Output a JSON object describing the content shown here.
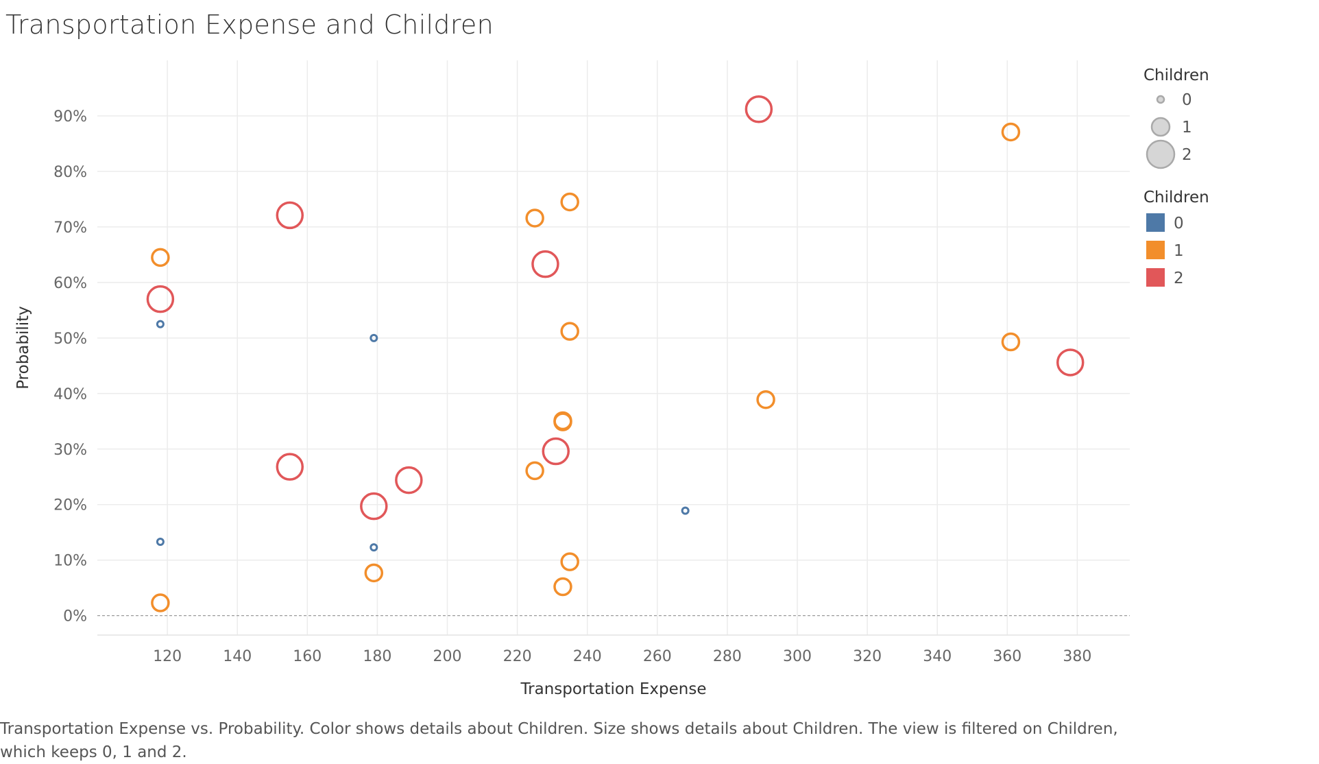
{
  "chart_data": {
    "type": "scatter",
    "title": "Transportation Expense and Children",
    "xlabel": "Transportation Expense",
    "ylabel": "Probability",
    "xlim": [
      100,
      395
    ],
    "ylim": [
      -0.035,
      1.0
    ],
    "x_ticks": [
      120,
      140,
      160,
      180,
      200,
      220,
      240,
      260,
      280,
      300,
      320,
      340,
      360,
      380
    ],
    "y_ticks": [
      0,
      0.1,
      0.2,
      0.3,
      0.4,
      0.5,
      0.6,
      0.7,
      0.8,
      0.9
    ],
    "y_tick_labels": [
      "0%",
      "10%",
      "20%",
      "30%",
      "40%",
      "50%",
      "60%",
      "70%",
      "80%",
      "90%"
    ],
    "grid": true,
    "marker": "hollow-circle",
    "color_by": "Children",
    "size_by": "Children",
    "series": [
      {
        "name": "0",
        "color": "#4e79a7",
        "points": [
          {
            "x": 118,
            "y": 0.525
          },
          {
            "x": 118,
            "y": 0.133
          },
          {
            "x": 179,
            "y": 0.5
          },
          {
            "x": 179,
            "y": 0.123
          },
          {
            "x": 268,
            "y": 0.189
          }
        ]
      },
      {
        "name": "1",
        "color": "#f28e2b",
        "points": [
          {
            "x": 118,
            "y": 0.645
          },
          {
            "x": 118,
            "y": 0.023
          },
          {
            "x": 179,
            "y": 0.077
          },
          {
            "x": 225,
            "y": 0.716
          },
          {
            "x": 225,
            "y": 0.261
          },
          {
            "x": 233,
            "y": 0.351
          },
          {
            "x": 233,
            "y": 0.349
          },
          {
            "x": 233,
            "y": 0.052
          },
          {
            "x": 235,
            "y": 0.745
          },
          {
            "x": 235,
            "y": 0.512
          },
          {
            "x": 235,
            "y": 0.097
          },
          {
            "x": 291,
            "y": 0.389
          },
          {
            "x": 361,
            "y": 0.871
          },
          {
            "x": 361,
            "y": 0.493
          }
        ]
      },
      {
        "name": "2",
        "color": "#e15759",
        "points": [
          {
            "x": 118,
            "y": 0.57
          },
          {
            "x": 155,
            "y": 0.721
          },
          {
            "x": 155,
            "y": 0.268
          },
          {
            "x": 179,
            "y": 0.197
          },
          {
            "x": 189,
            "y": 0.244
          },
          {
            "x": 228,
            "y": 0.633
          },
          {
            "x": 231,
            "y": 0.296
          },
          {
            "x": 289,
            "y": 0.912
          },
          {
            "x": 378,
            "y": 0.456
          }
        ]
      }
    ],
    "legend_placement": "right",
    "size_legend": {
      "title": "Children",
      "items": [
        "0",
        "1",
        "2"
      ]
    },
    "color_legend": {
      "title": "Children",
      "items": [
        "0",
        "1",
        "2"
      ],
      "colors": [
        "#4e79a7",
        "#f28e2b",
        "#e15759"
      ]
    }
  },
  "caption": "Transportation Expense vs. Probability.  Color shows details about Children.  Size shows details about Children. The view is filtered on Children, which keeps 0, 1 and 2."
}
